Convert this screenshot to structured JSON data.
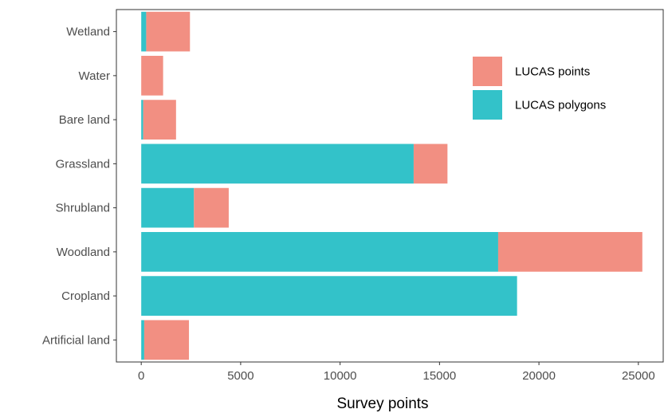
{
  "chart_data": {
    "type": "bar",
    "orientation": "horizontal",
    "stacked": true,
    "categories": [
      "Wetland",
      "Water",
      "Bare land",
      "Grassland",
      "Shrubland",
      "Woodland",
      "Cropland",
      "Artificial land"
    ],
    "series": [
      {
        "name": "LUCAS polygons",
        "color": "#33C2C9",
        "values": [
          250,
          0,
          100,
          13700,
          2650,
          17950,
          18900,
          150
        ]
      },
      {
        "name": "LUCAS points",
        "color": "#F28F82",
        "values": [
          2200,
          1100,
          1650,
          1700,
          1750,
          7250,
          0,
          2250
        ]
      }
    ],
    "xlabel": "Survey points",
    "ylabel": "",
    "xlim": [
      -1250,
      26250
    ],
    "xticks": [
      0,
      5000,
      10000,
      15000,
      20000,
      25000
    ],
    "grid": false,
    "legend": {
      "position": "top-right",
      "entries": [
        "LUCAS points",
        "LUCAS polygons"
      ]
    }
  }
}
